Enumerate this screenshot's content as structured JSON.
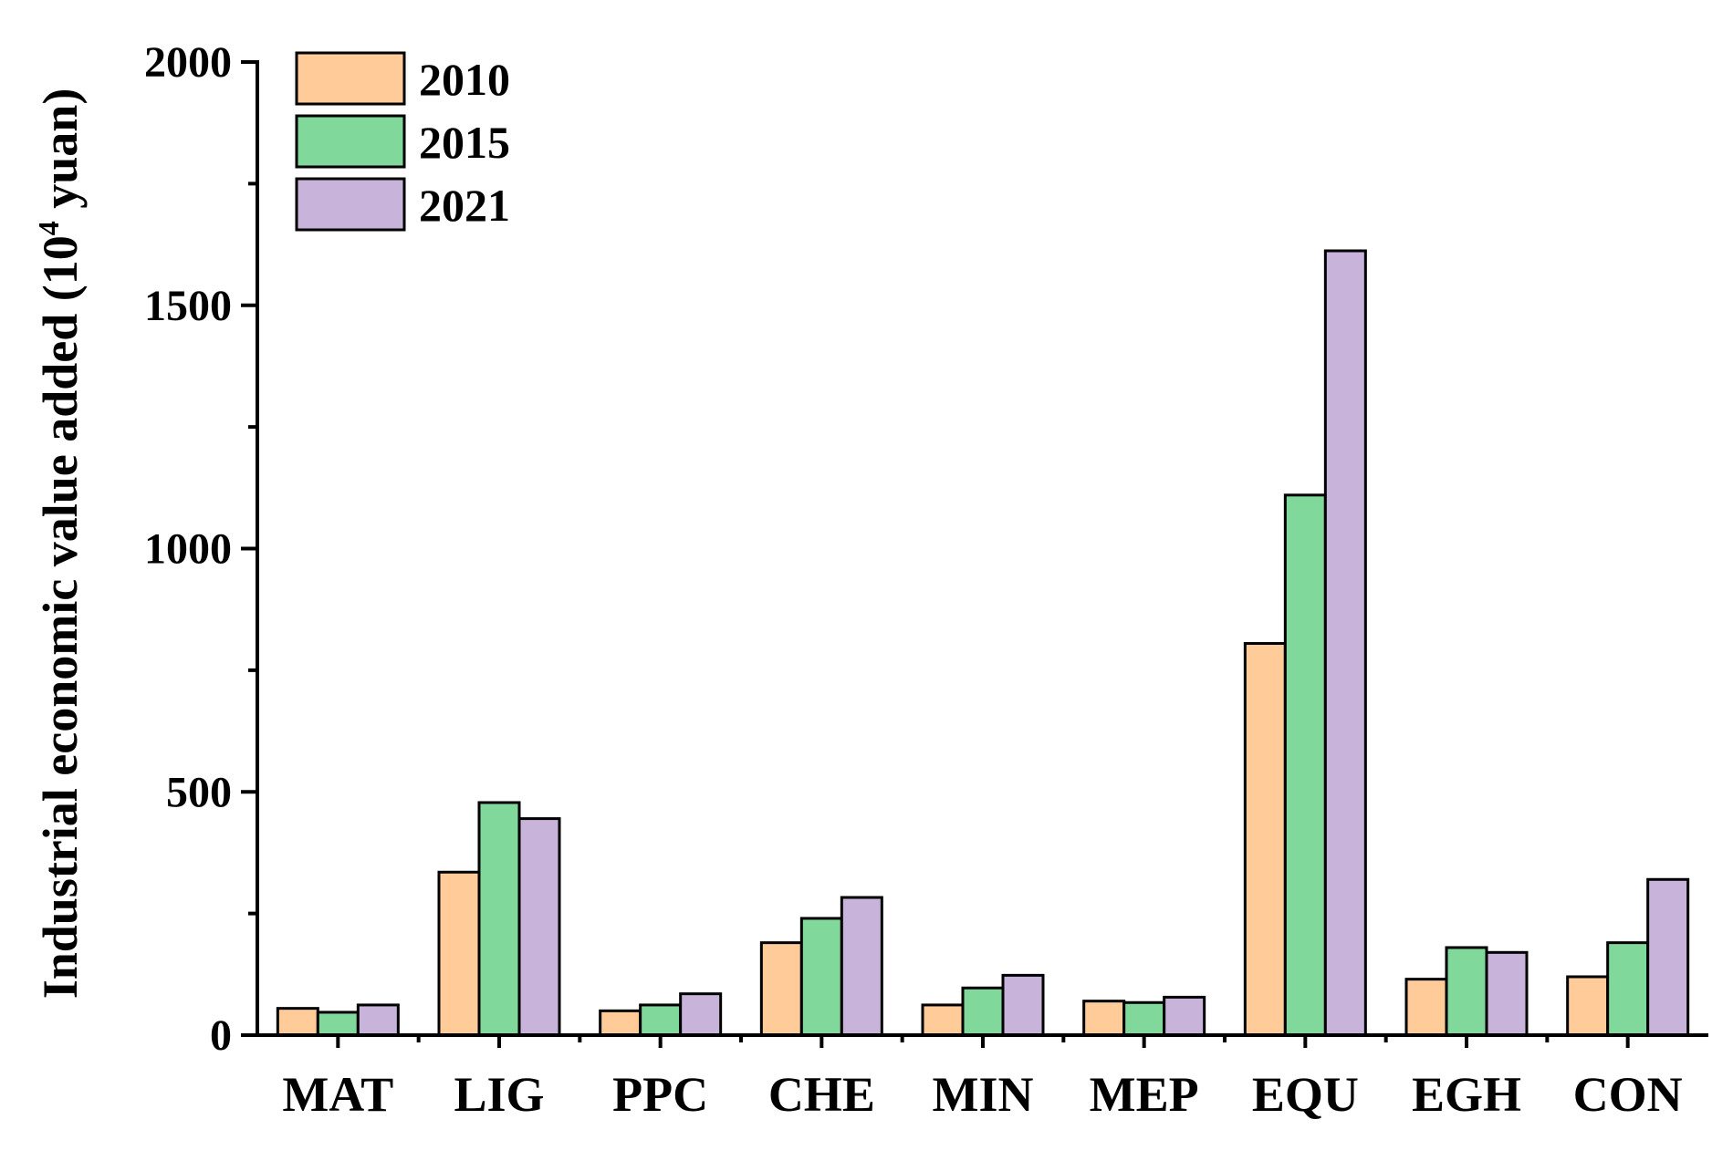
{
  "chart_data": {
    "type": "bar",
    "title": "",
    "xlabel": "",
    "ylabel": "Industrial economic value added (10",
    "ylabel_superscript": "4",
    "ylabel_suffix": " yuan)",
    "ylim": [
      0,
      2000
    ],
    "yticks": [
      0,
      500,
      1000,
      1500,
      2000
    ],
    "categories": [
      "MAT",
      "LIG",
      "PPC",
      "CHE",
      "MIN",
      "MEP",
      "EQU",
      "EGH",
      "CON"
    ],
    "series": [
      {
        "name": "2010",
        "color": "#FFCC99",
        "values": [
          55,
          335,
          50,
          190,
          62,
          70,
          805,
          115,
          120
        ]
      },
      {
        "name": "2015",
        "color": "#80D99A",
        "values": [
          47,
          478,
          62,
          240,
          97,
          67,
          1110,
          180,
          190
        ]
      },
      {
        "name": "2021",
        "color": "#C8B3DB",
        "values": [
          62,
          445,
          85,
          283,
          123,
          78,
          1612,
          170,
          320
        ]
      }
    ],
    "legend_position": "top-left",
    "grid": false
  }
}
